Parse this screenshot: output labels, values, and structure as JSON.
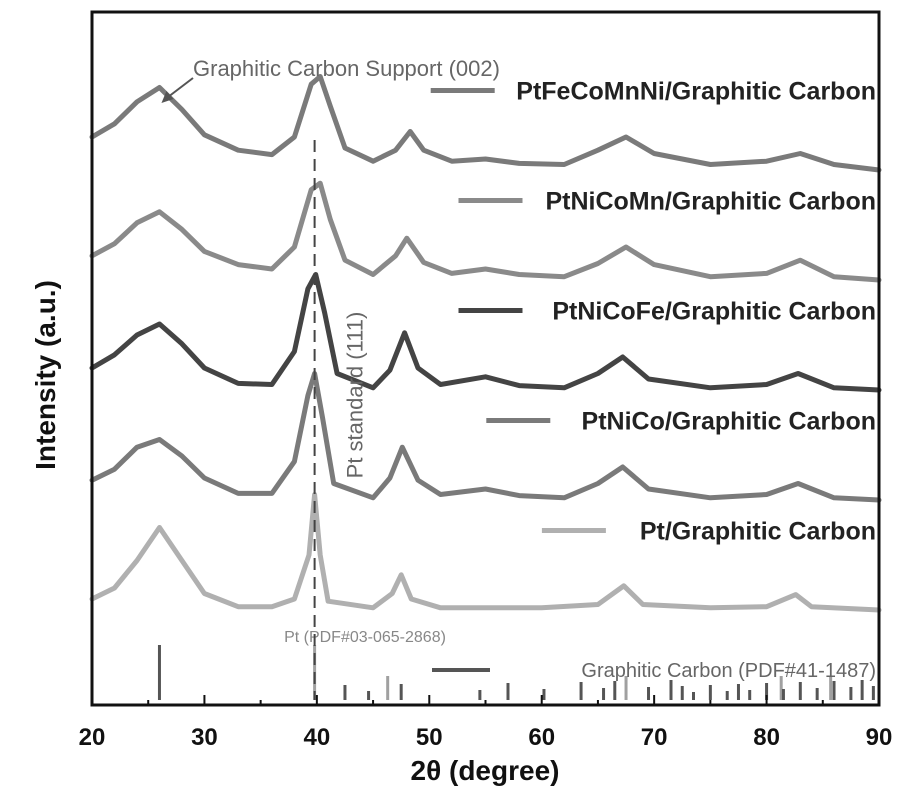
{
  "chart_data": {
    "type": "line",
    "xlabel": "2θ (degree)",
    "ylabel": "Intensity (a.u.)",
    "xlim": [
      20,
      90
    ],
    "xticks": [
      "20",
      "30",
      "40",
      "50",
      "60",
      "70",
      "80",
      "90"
    ],
    "y_ticks_shown": false,
    "grid": false,
    "legend_placement": "inline-right",
    "series": [
      {
        "name": "PtFeCoMnNi/Graphitic Carbon",
        "color": "#7a7a7a",
        "offset": 4.0,
        "points": [
          [
            20,
            0.3
          ],
          [
            22,
            0.42
          ],
          [
            24,
            0.62
          ],
          [
            26,
            0.75
          ],
          [
            28,
            0.55
          ],
          [
            30,
            0.32
          ],
          [
            33,
            0.18
          ],
          [
            36,
            0.14
          ],
          [
            38,
            0.3
          ],
          [
            39.5,
            0.78
          ],
          [
            40.3,
            0.85
          ],
          [
            41.2,
            0.58
          ],
          [
            42.5,
            0.2
          ],
          [
            45,
            0.08
          ],
          [
            47,
            0.18
          ],
          [
            48.3,
            0.35
          ],
          [
            49.5,
            0.18
          ],
          [
            52,
            0.08
          ],
          [
            55,
            0.1
          ],
          [
            58,
            0.06
          ],
          [
            62,
            0.05
          ],
          [
            65,
            0.18
          ],
          [
            67.5,
            0.3
          ],
          [
            70,
            0.15
          ],
          [
            75,
            0.05
          ],
          [
            80,
            0.08
          ],
          [
            83,
            0.15
          ],
          [
            86,
            0.05
          ],
          [
            90,
            0.0
          ]
        ]
      },
      {
        "name": "PtNiCoMn/Graphitic Carbon",
        "color": "#8a8a8a",
        "offset": 3.0,
        "points": [
          [
            20,
            0.22
          ],
          [
            22,
            0.33
          ],
          [
            24,
            0.52
          ],
          [
            26,
            0.62
          ],
          [
            28,
            0.46
          ],
          [
            30,
            0.26
          ],
          [
            33,
            0.14
          ],
          [
            36,
            0.1
          ],
          [
            38,
            0.3
          ],
          [
            39.5,
            0.82
          ],
          [
            40.3,
            0.88
          ],
          [
            41.2,
            0.55
          ],
          [
            42.5,
            0.18
          ],
          [
            45,
            0.05
          ],
          [
            47,
            0.22
          ],
          [
            48,
            0.38
          ],
          [
            49.5,
            0.16
          ],
          [
            52,
            0.06
          ],
          [
            55,
            0.1
          ],
          [
            58,
            0.05
          ],
          [
            62,
            0.03
          ],
          [
            65,
            0.15
          ],
          [
            67.5,
            0.3
          ],
          [
            70,
            0.14
          ],
          [
            75,
            0.03
          ],
          [
            80,
            0.06
          ],
          [
            83,
            0.18
          ],
          [
            86,
            0.03
          ],
          [
            90,
            0.0
          ]
        ]
      },
      {
        "name": "PtNiCoFe/Graphitic Carbon",
        "color": "#444444",
        "offset": 2.0,
        "points": [
          [
            20,
            0.2
          ],
          [
            22,
            0.32
          ],
          [
            24,
            0.5
          ],
          [
            26,
            0.6
          ],
          [
            28,
            0.42
          ],
          [
            30,
            0.2
          ],
          [
            33,
            0.06
          ],
          [
            36,
            0.05
          ],
          [
            38,
            0.35
          ],
          [
            39.2,
            0.92
          ],
          [
            39.9,
            1.05
          ],
          [
            40.7,
            0.7
          ],
          [
            41.8,
            0.15
          ],
          [
            45,
            0.02
          ],
          [
            46.5,
            0.18
          ],
          [
            47.8,
            0.52
          ],
          [
            49,
            0.2
          ],
          [
            51,
            0.05
          ],
          [
            55,
            0.12
          ],
          [
            58,
            0.04
          ],
          [
            62,
            0.02
          ],
          [
            65,
            0.15
          ],
          [
            67.2,
            0.3
          ],
          [
            69.5,
            0.1
          ],
          [
            75,
            0.02
          ],
          [
            80,
            0.05
          ],
          [
            82.8,
            0.15
          ],
          [
            86,
            0.02
          ],
          [
            90,
            0.0
          ]
        ]
      },
      {
        "name": "PtNiCo/Graphitic Carbon",
        "color": "#7a7a7a",
        "offset": 1.0,
        "points": [
          [
            20,
            0.18
          ],
          [
            22,
            0.28
          ],
          [
            24,
            0.48
          ],
          [
            26,
            0.55
          ],
          [
            28,
            0.4
          ],
          [
            30,
            0.2
          ],
          [
            33,
            0.06
          ],
          [
            36,
            0.06
          ],
          [
            38,
            0.35
          ],
          [
            39.2,
            0.95
          ],
          [
            39.8,
            1.15
          ],
          [
            40.5,
            0.75
          ],
          [
            41.5,
            0.15
          ],
          [
            45,
            0.02
          ],
          [
            46.5,
            0.2
          ],
          [
            47.6,
            0.48
          ],
          [
            49,
            0.18
          ],
          [
            51,
            0.05
          ],
          [
            55,
            0.1
          ],
          [
            58,
            0.04
          ],
          [
            62,
            0.02
          ],
          [
            65,
            0.15
          ],
          [
            67.2,
            0.3
          ],
          [
            69.5,
            0.1
          ],
          [
            75,
            0.02
          ],
          [
            80,
            0.05
          ],
          [
            82.8,
            0.15
          ],
          [
            86,
            0.02
          ],
          [
            90,
            0.0
          ]
        ]
      },
      {
        "name": "Pt/Graphitic Carbon",
        "color": "#b0b0b0",
        "offset": 0.0,
        "points": [
          [
            20,
            0.1
          ],
          [
            22,
            0.2
          ],
          [
            24,
            0.45
          ],
          [
            26,
            0.75
          ],
          [
            28,
            0.45
          ],
          [
            30,
            0.15
          ],
          [
            33,
            0.03
          ],
          [
            36,
            0.03
          ],
          [
            38,
            0.1
          ],
          [
            39.3,
            0.5
          ],
          [
            39.8,
            1.05
          ],
          [
            40.3,
            0.5
          ],
          [
            41,
            0.08
          ],
          [
            45,
            0.02
          ],
          [
            46.7,
            0.15
          ],
          [
            47.5,
            0.32
          ],
          [
            48.4,
            0.1
          ],
          [
            51,
            0.02
          ],
          [
            55,
            0.02
          ],
          [
            60,
            0.02
          ],
          [
            65,
            0.05
          ],
          [
            67.3,
            0.22
          ],
          [
            69,
            0.05
          ],
          [
            75,
            0.02
          ],
          [
            80,
            0.03
          ],
          [
            82.6,
            0.14
          ],
          [
            84,
            0.03
          ],
          [
            90,
            0.0
          ]
        ]
      }
    ],
    "reference_markers": [
      {
        "position": 39.8,
        "label": "Pt standard (111)"
      }
    ],
    "reference_bars": [
      {
        "name": "Pt (PDF#03-065-2868)",
        "color": "#a0a0a0",
        "x": [
          39.8,
          46.3,
          67.5,
          81.3,
          85.7
        ]
      },
      {
        "name": "Graphitic Carbon (PDF#41-1487)",
        "color": "#555555",
        "x": [
          26.0,
          42.5,
          44.6,
          47.5,
          54.5,
          57.0,
          60.2,
          63.5,
          65.5,
          66.5,
          69.5,
          71.5,
          72.5,
          73.5,
          75.0,
          76.5,
          77.5,
          78.5,
          80.0,
          81.5,
          83.0,
          84.5,
          86.0,
          87.5,
          88.5,
          89.5
        ]
      }
    ],
    "annotations": [
      {
        "text": "Graphitic Carbon Support (002)",
        "x": 26
      }
    ]
  }
}
